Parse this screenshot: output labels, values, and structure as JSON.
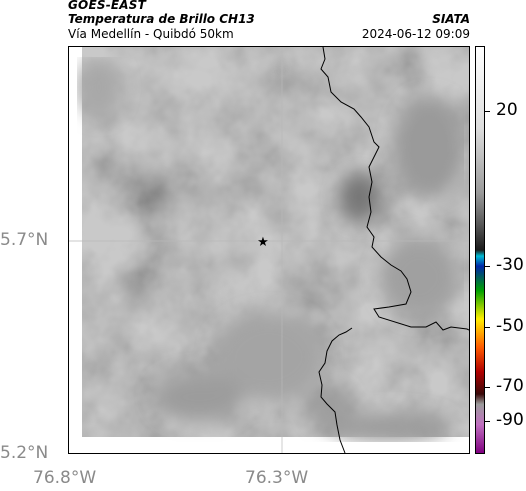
{
  "header": {
    "satellite": "GOES-EAST",
    "product": "Temperatura de Brillo CH13",
    "region": "Vía Medellín - Quibdó 50km",
    "agency": "SIATA",
    "datetime": "2024-06-12 09:09"
  },
  "map": {
    "lat_ticks": [
      {
        "label": "5.7°N",
        "value": 5.7
      },
      {
        "label": "5.2°N",
        "value": 5.2
      }
    ],
    "lon_ticks": [
      {
        "label": "76.8°W",
        "value": -76.8
      },
      {
        "label": "76.3°W",
        "value": -76.3
      }
    ],
    "marker": {
      "symbol": "star",
      "lat": 5.7,
      "lon": -76.35
    },
    "gridlines": true,
    "colors": {
      "background": "#898989",
      "border_line": "#000000"
    }
  },
  "colorbar": {
    "ticks": [
      "20",
      "-30",
      "-50",
      "-70",
      "-90"
    ],
    "scale_colors": [
      "#ffffff",
      "#dddddd",
      "#9a9a9a",
      "#555555",
      "#1a1a1a",
      "#00bcd4",
      "#0026a8",
      "#00a000",
      "#ffee00",
      "#ff5a00",
      "#b00000",
      "#3a0a0a",
      "#9c9c9c",
      "#c070c0",
      "#800080"
    ]
  }
}
